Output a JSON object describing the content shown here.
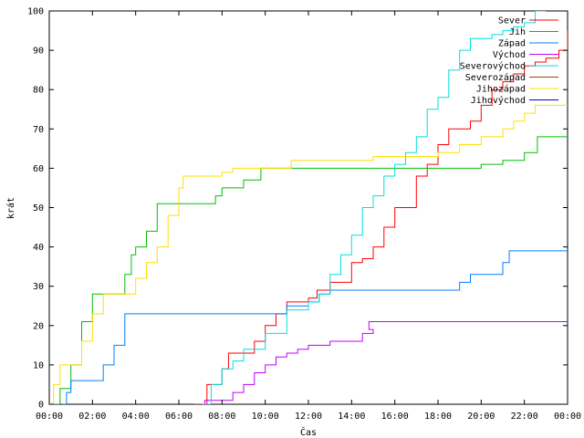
{
  "chart_data": {
    "type": "line",
    "xlabel": "Čas",
    "ylabel": "krát",
    "xlim": [
      0,
      24
    ],
    "ylim": [
      0,
      100
    ],
    "x_ticks": [
      {
        "value": 0,
        "label": "00:00"
      },
      {
        "value": 2,
        "label": "02:00"
      },
      {
        "value": 4,
        "label": "04:00"
      },
      {
        "value": 6,
        "label": "06:00"
      },
      {
        "value": 8,
        "label": "08:00"
      },
      {
        "value": 10,
        "label": "10:00"
      },
      {
        "value": 12,
        "label": "12:00"
      },
      {
        "value": 14,
        "label": "14:00"
      },
      {
        "value": 16,
        "label": "16:00"
      },
      {
        "value": 18,
        "label": "18:00"
      },
      {
        "value": 20,
        "label": "20:00"
      },
      {
        "value": 22,
        "label": "22:00"
      },
      {
        "value": 24,
        "label": "00:00"
      }
    ],
    "y_ticks": [
      0,
      10,
      20,
      30,
      40,
      50,
      60,
      70,
      80,
      90,
      100
    ],
    "grid": false,
    "legend_position": "top-right",
    "series": [
      {
        "name": "Sever",
        "color": "#ff0000",
        "points": [
          [
            6.7,
            0
          ],
          [
            7.3,
            5
          ],
          [
            8.0,
            9
          ],
          [
            8.3,
            13
          ],
          [
            9.0,
            13
          ],
          [
            9.5,
            16
          ],
          [
            10.0,
            20
          ],
          [
            10.5,
            23
          ],
          [
            11.0,
            26
          ],
          [
            12.0,
            27
          ],
          [
            12.4,
            29
          ],
          [
            13.0,
            31
          ],
          [
            14.0,
            36
          ],
          [
            14.5,
            37
          ],
          [
            15.0,
            40
          ],
          [
            15.5,
            45
          ],
          [
            16.0,
            50
          ],
          [
            17.0,
            58
          ],
          [
            17.5,
            61
          ],
          [
            18.0,
            66
          ],
          [
            18.5,
            70
          ],
          [
            19.0,
            70
          ],
          [
            19.5,
            72
          ],
          [
            20.0,
            76
          ],
          [
            20.5,
            80
          ],
          [
            21.0,
            82
          ],
          [
            21.5,
            84
          ],
          [
            22.0,
            86
          ],
          [
            22.5,
            87
          ],
          [
            23.0,
            88
          ],
          [
            23.6,
            90
          ],
          [
            24.0,
            95
          ]
        ]
      },
      {
        "name": "Jih",
        "color": "#00c000",
        "points": [
          [
            0.2,
            0
          ],
          [
            0.5,
            4
          ],
          [
            1.0,
            10
          ],
          [
            1.5,
            21
          ],
          [
            2.0,
            28
          ],
          [
            3.0,
            28
          ],
          [
            3.5,
            33
          ],
          [
            3.8,
            38
          ],
          [
            4.0,
            40
          ],
          [
            4.5,
            44
          ],
          [
            5.0,
            51
          ],
          [
            6.0,
            51
          ],
          [
            7.0,
            51
          ],
          [
            7.7,
            53
          ],
          [
            8.0,
            55
          ],
          [
            9.0,
            57
          ],
          [
            9.8,
            60
          ],
          [
            11.0,
            60
          ],
          [
            15.0,
            60
          ],
          [
            18.0,
            60
          ],
          [
            19.0,
            60
          ],
          [
            20.0,
            61
          ],
          [
            20.5,
            61
          ],
          [
            21.0,
            62
          ],
          [
            22.0,
            64
          ],
          [
            22.6,
            68
          ],
          [
            24.0,
            68
          ]
        ]
      },
      {
        "name": "Západ",
        "color": "#0080ff",
        "points": [
          [
            0.6,
            0
          ],
          [
            0.8,
            3
          ],
          [
            1.0,
            6
          ],
          [
            2.0,
            6
          ],
          [
            2.5,
            10
          ],
          [
            3.0,
            15
          ],
          [
            3.5,
            23
          ],
          [
            5.0,
            23
          ],
          [
            10.5,
            23
          ],
          [
            11.0,
            25
          ],
          [
            12.0,
            26
          ],
          [
            12.5,
            28
          ],
          [
            13.0,
            29
          ],
          [
            14.0,
            29
          ],
          [
            16.0,
            29
          ],
          [
            18.0,
            29
          ],
          [
            18.8,
            29
          ],
          [
            19.0,
            31
          ],
          [
            19.5,
            33
          ],
          [
            20.5,
            33
          ],
          [
            21.0,
            36
          ],
          [
            21.3,
            39
          ],
          [
            24.0,
            39
          ]
        ]
      },
      {
        "name": "Východ",
        "color": "#c000ff",
        "points": [
          [
            7.0,
            0
          ],
          [
            7.2,
            1
          ],
          [
            8.0,
            1
          ],
          [
            8.5,
            3
          ],
          [
            9.0,
            5
          ],
          [
            9.5,
            8
          ],
          [
            10.0,
            10
          ],
          [
            10.5,
            12
          ],
          [
            11.0,
            13
          ],
          [
            11.5,
            14
          ],
          [
            12.0,
            15
          ],
          [
            12.5,
            15
          ],
          [
            13.0,
            16
          ],
          [
            14.0,
            16
          ],
          [
            14.5,
            18
          ],
          [
            15.0,
            19
          ],
          [
            14.8,
            21
          ],
          [
            16.0,
            21
          ],
          [
            20.0,
            21
          ],
          [
            24.0,
            21
          ]
        ]
      },
      {
        "name": "Severovýchod",
        "color": "#00e0e0",
        "points": [
          [
            7.1,
            0
          ],
          [
            7.5,
            5
          ],
          [
            8.0,
            9
          ],
          [
            8.5,
            11
          ],
          [
            9.0,
            14
          ],
          [
            10.0,
            18
          ],
          [
            11.0,
            24
          ],
          [
            12.0,
            26
          ],
          [
            12.5,
            28
          ],
          [
            13.0,
            33
          ],
          [
            13.5,
            38
          ],
          [
            14.0,
            43
          ],
          [
            14.5,
            50
          ],
          [
            15.0,
            53
          ],
          [
            15.5,
            58
          ],
          [
            16.0,
            61
          ],
          [
            16.5,
            64
          ],
          [
            17.0,
            68
          ],
          [
            17.5,
            75
          ],
          [
            18.0,
            78
          ],
          [
            18.5,
            85
          ],
          [
            19.0,
            90
          ],
          [
            19.5,
            93
          ],
          [
            20.0,
            93
          ],
          [
            20.5,
            94
          ],
          [
            21.0,
            95
          ],
          [
            21.5,
            96
          ],
          [
            22.0,
            97
          ],
          [
            22.5,
            100
          ],
          [
            23.0,
            100
          ]
        ]
      },
      {
        "name": "Severozápad",
        "color": "#a04000",
        "points": []
      },
      {
        "name": "Jihozápad",
        "color": "#ffe000",
        "points": [
          [
            0.0,
            0
          ],
          [
            0.2,
            5
          ],
          [
            0.5,
            10
          ],
          [
            1.0,
            10
          ],
          [
            1.5,
            16
          ],
          [
            2.0,
            23
          ],
          [
            2.5,
            28
          ],
          [
            3.5,
            28
          ],
          [
            4.0,
            32
          ],
          [
            4.5,
            36
          ],
          [
            5.0,
            40
          ],
          [
            5.5,
            48
          ],
          [
            6.0,
            55
          ],
          [
            6.2,
            58
          ],
          [
            7.0,
            58
          ],
          [
            8.0,
            59
          ],
          [
            8.5,
            60
          ],
          [
            10.0,
            60
          ],
          [
            11.2,
            62
          ],
          [
            13.0,
            62
          ],
          [
            15.0,
            63
          ],
          [
            17.0,
            63
          ],
          [
            18.0,
            64
          ],
          [
            19.0,
            66
          ],
          [
            20.0,
            68
          ],
          [
            21.0,
            70
          ],
          [
            21.5,
            72
          ],
          [
            22.0,
            74
          ],
          [
            22.5,
            76
          ],
          [
            24.0,
            76
          ]
        ]
      },
      {
        "name": "Jihovýchod",
        "color": "#0000c0",
        "points": []
      }
    ]
  }
}
